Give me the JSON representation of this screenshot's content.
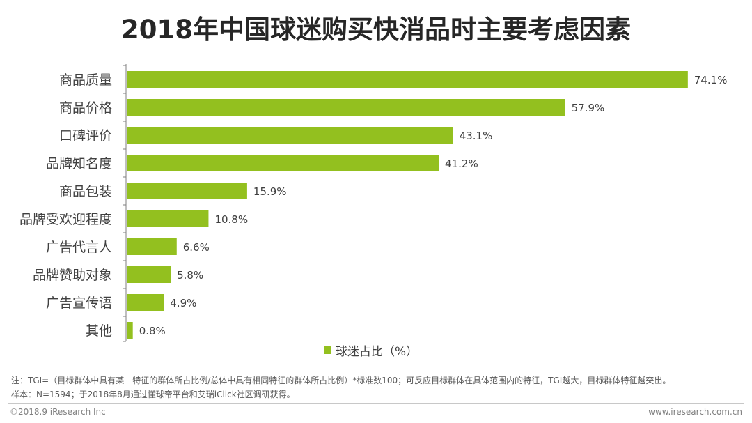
{
  "chart_data": {
    "type": "bar",
    "orientation": "horizontal",
    "title": "2018年中国球迷购买快消品时主要考虑因素",
    "categories": [
      "商品质量",
      "商品价格",
      "口碑评价",
      "品牌知名度",
      "商品包装",
      "品牌受欢迎程度",
      "广告代言人",
      "品牌赞助对象",
      "广告宣传语",
      "其他"
    ],
    "values": [
      74.1,
      57.9,
      43.1,
      41.2,
      15.9,
      10.8,
      6.6,
      5.8,
      4.9,
      0.8
    ],
    "value_labels": [
      "74.1%",
      "57.9%",
      "43.1%",
      "41.2%",
      "15.9%",
      "10.8%",
      "6.6%",
      "5.8%",
      "4.9%",
      "0.8%"
    ],
    "series_name": "球迷占比（%）",
    "legend_position": "bottom",
    "xlim": [
      0,
      80
    ],
    "grid": false,
    "bar_color": "#93c01f"
  },
  "notes": {
    "note1": "注：TGI=（目标群体中具有某一特征的群体所占比例/总体中具有相同特征的群体所占比例）*标准数100；可反应目标群体在具体范围内的特征，TGI越大，目标群体特征越突出。",
    "note2": "样本：N=1594；于2018年8月通过懂球帝平台和艾瑞iClick社区调研获得。"
  },
  "footer": {
    "copyright": "©2018.9 iResearch Inc",
    "website": "www.iresearch.com.cn"
  }
}
